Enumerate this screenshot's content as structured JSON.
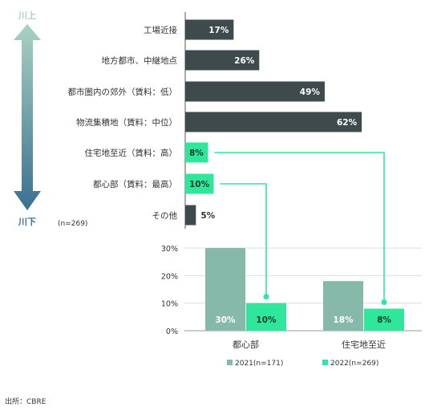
{
  "chart_data": [
    {
      "type": "bar",
      "orientation": "horizontal",
      "categories": [
        "工場近接",
        "地方都市、中継地点",
        "都市圏内の郊外（賃料：低）",
        "物流集積地（賃料：中位）",
        "住宅地至近（賃料：高）",
        "都心部（賃料：最高）",
        "その他"
      ],
      "values": [
        17,
        26,
        49,
        62,
        8,
        10,
        5
      ],
      "data_labels": [
        "17%",
        "26%",
        "49%",
        "62%",
        "8%",
        "10%",
        "5%"
      ],
      "highlighted": [
        false,
        false,
        false,
        false,
        true,
        true,
        false
      ],
      "sample_note": "(n=269)",
      "arrow_top_label": "川上",
      "arrow_bottom_label": "川下",
      "xlim": [
        0,
        70
      ]
    },
    {
      "type": "bar",
      "orientation": "vertical",
      "categories": [
        "都心部",
        "住宅地至近"
      ],
      "series": [
        {
          "name": "2021(n=171)",
          "values": [
            30,
            18
          ],
          "labels": [
            "30%",
            "18%"
          ]
        },
        {
          "name": "2022(n=269)",
          "values": [
            10,
            8
          ],
          "labels": [
            "10%",
            "8%"
          ]
        }
      ],
      "yticks": [
        "0%",
        "10%",
        "20%",
        "30%"
      ],
      "ylim": [
        0,
        30
      ],
      "grid": true,
      "legend_position": "bottom"
    }
  ],
  "source": "出所：CBRE",
  "colors": {
    "dark_bar": "#3f4a4c",
    "highlight": "#2ee79a",
    "series_2021": "#86b9aa",
    "series_2022": "#2ee79a",
    "arrow_top": "#a9d2c2",
    "arrow_bottom": "#3a6f92",
    "grid": "#dddddd"
  }
}
